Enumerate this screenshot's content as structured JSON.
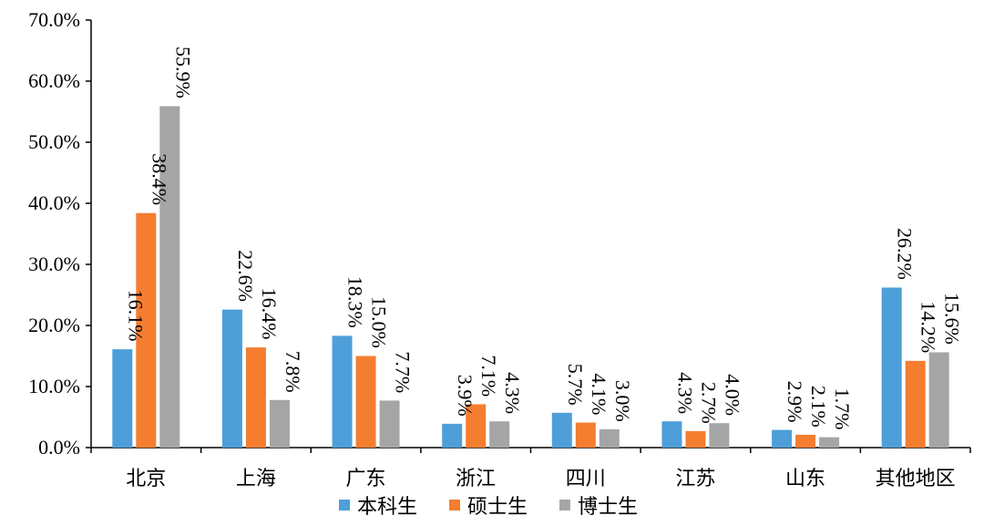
{
  "chart_data": {
    "type": "bar",
    "categories": [
      "北京",
      "上海",
      "广东",
      "浙江",
      "四川",
      "江苏",
      "山东",
      "其他地区"
    ],
    "series": [
      {
        "name": "本科生",
        "color": "#4e9fd9",
        "values": [
          16.1,
          22.6,
          18.3,
          3.9,
          5.7,
          4.3,
          2.9,
          26.2
        ],
        "labels": [
          "16.1%",
          "22.6%",
          "18.3%",
          "3.9%",
          "5.7%",
          "4.3%",
          "2.9%",
          "26.2%"
        ]
      },
      {
        "name": "硕士生",
        "color": "#f47d30",
        "values": [
          38.4,
          16.4,
          15.0,
          7.1,
          4.1,
          2.7,
          2.1,
          14.2
        ],
        "labels": [
          "38.4%",
          "16.4%",
          "15.0%",
          "7.1%",
          "4.1%",
          "2.7%",
          "2.1%",
          "14.2%"
        ]
      },
      {
        "name": "博士生",
        "color": "#a5a5a5",
        "values": [
          55.9,
          7.8,
          7.7,
          4.3,
          3.0,
          4.0,
          1.7,
          15.6
        ],
        "labels": [
          "55.9%",
          "7.8%",
          "7.7%",
          "4.3%",
          "3.0%",
          "4.0%",
          "1.7%",
          "15.6%"
        ]
      }
    ],
    "y_ticks": [
      "0.0%",
      "10.0%",
      "20.0%",
      "30.0%",
      "40.0%",
      "50.0%",
      "60.0%",
      "70.0%"
    ],
    "ylim": [
      0,
      70
    ],
    "grid": false,
    "legend_position": "bottom-center",
    "title": "",
    "xlabel": "",
    "ylabel": ""
  }
}
